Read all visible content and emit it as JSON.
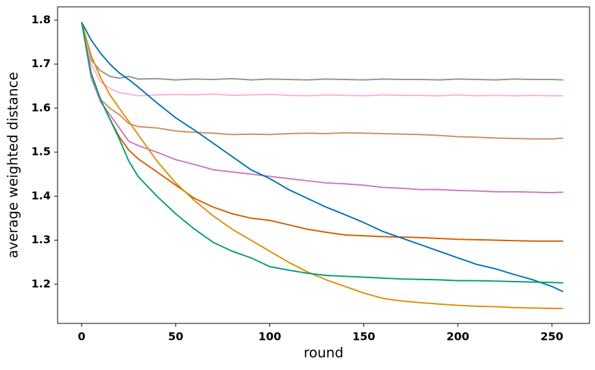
{
  "chart_data": {
    "type": "line",
    "xlabel": "round",
    "ylabel": "average weighted distance",
    "x": [
      0,
      5,
      10,
      15,
      20,
      25,
      30,
      40,
      50,
      60,
      70,
      80,
      90,
      100,
      110,
      120,
      130,
      140,
      150,
      160,
      170,
      180,
      190,
      200,
      210,
      220,
      230,
      240,
      250,
      256
    ],
    "xlim": [
      -12.8,
      270
    ],
    "xticks": [
      0,
      50,
      100,
      150,
      200,
      250
    ],
    "ylim": [
      1.111,
      1.83
    ],
    "yticks": [
      1.2,
      1.3,
      1.4,
      1.5,
      1.6,
      1.7,
      1.8
    ],
    "grid": false,
    "series": [
      {
        "color": "#949494",
        "values": [
          1.795,
          1.71,
          1.685,
          1.672,
          1.668,
          1.672,
          1.666,
          1.667,
          1.664,
          1.666,
          1.665,
          1.667,
          1.664,
          1.666,
          1.665,
          1.664,
          1.666,
          1.665,
          1.664,
          1.666,
          1.665,
          1.665,
          1.664,
          1.666,
          1.665,
          1.664,
          1.666,
          1.665,
          1.665,
          1.664
        ]
      },
      {
        "color": "#fbafe4",
        "values": [
          1.795,
          1.7,
          1.66,
          1.645,
          1.635,
          1.632,
          1.628,
          1.63,
          1.631,
          1.63,
          1.632,
          1.629,
          1.63,
          1.631,
          1.629,
          1.628,
          1.63,
          1.629,
          1.628,
          1.63,
          1.629,
          1.629,
          1.628,
          1.63,
          1.628,
          1.629,
          1.628,
          1.629,
          1.628,
          1.628
        ]
      },
      {
        "color": "#ca9161",
        "values": [
          1.795,
          1.68,
          1.62,
          1.6,
          1.585,
          1.565,
          1.558,
          1.555,
          1.548,
          1.545,
          1.543,
          1.54,
          1.541,
          1.54,
          1.542,
          1.543,
          1.542,
          1.544,
          1.543,
          1.542,
          1.541,
          1.54,
          1.538,
          1.535,
          1.534,
          1.532,
          1.531,
          1.53,
          1.53,
          1.532
        ]
      },
      {
        "color": "#cc78bc",
        "values": [
          1.795,
          1.67,
          1.615,
          1.585,
          1.555,
          1.525,
          1.515,
          1.5,
          1.483,
          1.472,
          1.46,
          1.455,
          1.45,
          1.445,
          1.44,
          1.435,
          1.43,
          1.428,
          1.425,
          1.42,
          1.418,
          1.415,
          1.415,
          1.413,
          1.412,
          1.41,
          1.41,
          1.409,
          1.408,
          1.409
        ]
      },
      {
        "color": "#d55e00",
        "values": [
          1.795,
          1.68,
          1.62,
          1.575,
          1.535,
          1.505,
          1.485,
          1.455,
          1.425,
          1.395,
          1.375,
          1.36,
          1.35,
          1.345,
          1.335,
          1.325,
          1.318,
          1.312,
          1.31,
          1.308,
          1.307,
          1.306,
          1.304,
          1.302,
          1.301,
          1.3,
          1.299,
          1.298,
          1.298,
          1.298
        ]
      },
      {
        "color": "#0173b2",
        "values": [
          1.795,
          1.755,
          1.725,
          1.7,
          1.68,
          1.665,
          1.648,
          1.612,
          1.578,
          1.55,
          1.52,
          1.49,
          1.46,
          1.44,
          1.415,
          1.395,
          1.375,
          1.358,
          1.34,
          1.32,
          1.305,
          1.29,
          1.275,
          1.26,
          1.245,
          1.235,
          1.222,
          1.21,
          1.195,
          1.183
        ]
      },
      {
        "color": "#de8f05",
        "values": [
          1.795,
          1.72,
          1.67,
          1.63,
          1.6,
          1.57,
          1.54,
          1.48,
          1.43,
          1.39,
          1.355,
          1.325,
          1.3,
          1.275,
          1.25,
          1.228,
          1.21,
          1.195,
          1.18,
          1.168,
          1.162,
          1.158,
          1.155,
          1.152,
          1.15,
          1.149,
          1.147,
          1.146,
          1.145,
          1.145
        ]
      },
      {
        "color": "#029e73",
        "values": [
          1.795,
          1.68,
          1.62,
          1.575,
          1.53,
          1.48,
          1.445,
          1.4,
          1.36,
          1.325,
          1.295,
          1.275,
          1.26,
          1.24,
          1.232,
          1.225,
          1.22,
          1.218,
          1.216,
          1.214,
          1.212,
          1.211,
          1.21,
          1.208,
          1.208,
          1.207,
          1.206,
          1.205,
          1.204,
          1.203
        ]
      }
    ]
  }
}
